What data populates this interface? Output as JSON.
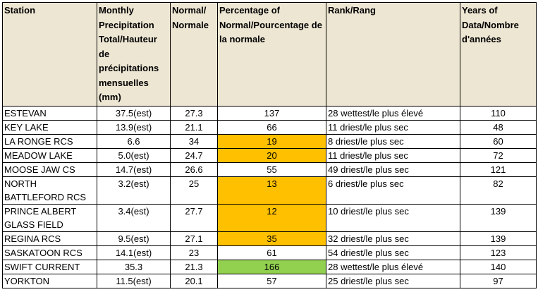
{
  "headers": [
    "Station",
    "Monthly Precipitation Total/Hauteur de précipitations mensuelles (mm)",
    "Normal/ Normale",
    "Percentage of Normal/Pourcentage de la normale",
    "Rank/Rang",
    "Years of Data/Nombre d'années"
  ],
  "highlight_colors": {
    "orange": "#ffc000",
    "green": "#92d050",
    "header": "#ede6d3"
  },
  "rows": [
    {
      "station": "ESTEVAN",
      "total": "37.5(est)",
      "normal": "27.3",
      "pct": "137",
      "rank": "28 wettest/le plus élevé",
      "years": "110",
      "highlight": ""
    },
    {
      "station": "KEY LAKE",
      "total": "13.9(est)",
      "normal": "21.1",
      "pct": "66",
      "rank": "11 driest/le plus sec",
      "years": "48",
      "highlight": ""
    },
    {
      "station": "LA RONGE RCS",
      "total": "6.6",
      "normal": "34",
      "pct": "19",
      "rank": "8 driest/le plus sec",
      "years": "60",
      "highlight": "orange"
    },
    {
      "station": "MEADOW LAKE",
      "total": "5.0(est)",
      "normal": "24.7",
      "pct": "20",
      "rank": "11 driest/le plus sec",
      "years": "72",
      "highlight": "orange"
    },
    {
      "station": "MOOSE JAW CS",
      "total": "14.7(est)",
      "normal": "26.6",
      "pct": "55",
      "rank": "49 driest/le plus sec",
      "years": "121",
      "highlight": ""
    },
    {
      "station": "NORTH BATTLEFORD RCS",
      "total": "3.2(est)",
      "normal": "25",
      "pct": "13",
      "rank": "6 driest/le plus sec",
      "years": "82",
      "highlight": "orange"
    },
    {
      "station": "PRINCE ALBERT GLASS FIELD",
      "total": "3.4(est)",
      "normal": "27.7",
      "pct": "12",
      "rank": "10 driest/le plus sec",
      "years": "139",
      "highlight": "orange"
    },
    {
      "station": "REGINA RCS",
      "total": "9.5(est)",
      "normal": "27.1",
      "pct": "35",
      "rank": "32 driest/le plus sec",
      "years": "139",
      "highlight": "orange"
    },
    {
      "station": "SASKATOON RCS",
      "total": "14.1(est)",
      "normal": "23",
      "pct": "61",
      "rank": "54 driest/le plus sec",
      "years": "123",
      "highlight": ""
    },
    {
      "station": "SWIFT CURRENT",
      "total": "35.3",
      "normal": "21.3",
      "pct": "166",
      "rank": "28 wettest/le plus élevé",
      "years": "140",
      "highlight": "green"
    },
    {
      "station": "YORKTON",
      "total": "11.5(est)",
      "normal": "20.1",
      "pct": "57",
      "rank": "25 driest/le plus sec",
      "years": "97",
      "highlight": ""
    }
  ]
}
